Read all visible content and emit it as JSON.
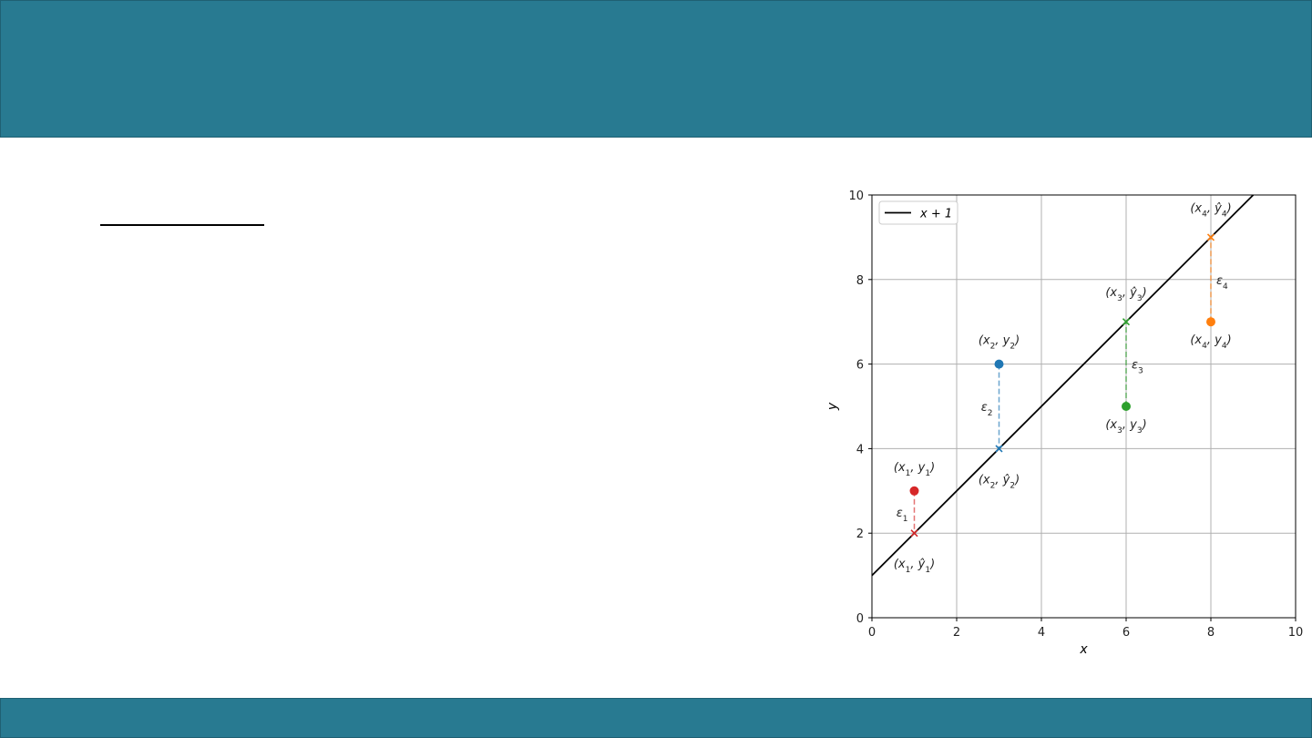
{
  "chart_data": {
    "type": "scatter",
    "xlabel": "x",
    "ylabel": "y",
    "xlim": [
      0,
      10
    ],
    "ylim": [
      0,
      10
    ],
    "grid": true,
    "legend_position": "top-left",
    "xticks": [
      "0",
      "2",
      "4",
      "6",
      "8",
      "10"
    ],
    "yticks": [
      "0",
      "2",
      "4",
      "6",
      "8",
      "10"
    ],
    "fit_line": {
      "name": "x + 1",
      "slope": 1,
      "intercept": 1,
      "color": "#000000"
    },
    "points": [
      {
        "x": 1,
        "y": 3,
        "y_hat": 2,
        "color": "#d62728",
        "label_observed": "(x1, y1)",
        "label_fitted": "(x1, ŷ1)",
        "residual_label": "ε1"
      },
      {
        "x": 3,
        "y": 6,
        "y_hat": 4,
        "color": "#1f77b4",
        "label_observed": "(x2, y2)",
        "label_fitted": "(x2, ŷ2)",
        "residual_label": "ε2"
      },
      {
        "x": 6,
        "y": 5,
        "y_hat": 7,
        "color": "#2ca02c",
        "label_observed": "(x3, y3)",
        "label_fitted": "(x3, ŷ3)",
        "residual_label": "ε3"
      },
      {
        "x": 8,
        "y": 7,
        "y_hat": 9,
        "color": "#ff7f0e",
        "label_observed": "(x4, y4)",
        "label_fitted": "(x4, ŷ4)",
        "residual_label": "ε4"
      }
    ]
  },
  "theme": {
    "banner_color": "#287a91"
  }
}
